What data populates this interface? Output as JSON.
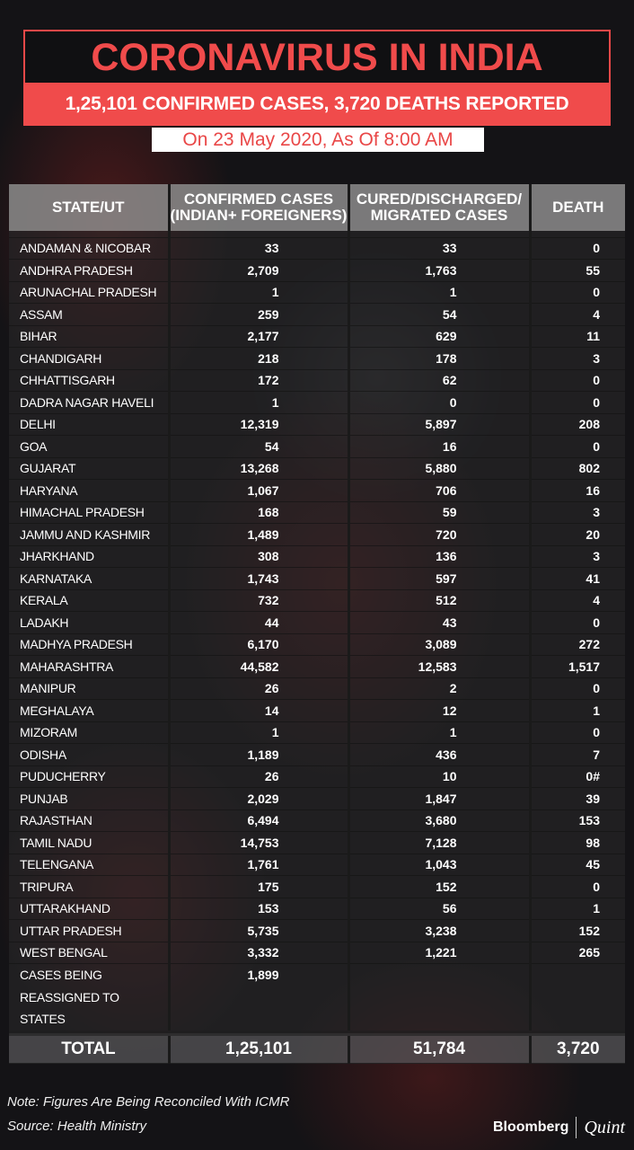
{
  "header": {
    "title": "CORONAVIRUS IN INDIA",
    "subtitle": "1,25,101 CONFIRMED CASES, 3,720 DEATHS REPORTED",
    "date": "On 23 May 2020, As Of 8:00 AM"
  },
  "table": {
    "columns": [
      "STATE/UT",
      "CONFIRMED CASES (INDIAN+ FOREIGNERS)",
      "CURED/DISCHARGED/ MIGRATED CASES",
      "DEATH"
    ],
    "rows": [
      [
        "ANDAMAN & NICOBAR",
        "33",
        "33",
        "0"
      ],
      [
        "ANDHRA PRADESH",
        "2,709",
        "1,763",
        "55"
      ],
      [
        "ARUNACHAL PRADESH",
        "1",
        "1",
        "0"
      ],
      [
        "ASSAM",
        "259",
        "54",
        "4"
      ],
      [
        "BIHAR",
        "2,177",
        "629",
        "11"
      ],
      [
        "CHANDIGARH",
        "218",
        "178",
        "3"
      ],
      [
        "CHHATTISGARH",
        "172",
        "62",
        "0"
      ],
      [
        "DADRA NAGAR HAVELI",
        "1",
        "0",
        "0"
      ],
      [
        "DELHI",
        "12,319",
        "5,897",
        "208"
      ],
      [
        "GOA",
        "54",
        "16",
        "0"
      ],
      [
        "GUJARAT",
        "13,268",
        "5,880",
        "802"
      ],
      [
        "HARYANA",
        "1,067",
        "706",
        "16"
      ],
      [
        "HIMACHAL PRADESH",
        "168",
        "59",
        "3"
      ],
      [
        "JAMMU AND KASHMIR",
        "1,489",
        "720",
        "20"
      ],
      [
        "JHARKHAND",
        "308",
        "136",
        "3"
      ],
      [
        "KARNATAKA",
        "1,743",
        "597",
        "41"
      ],
      [
        "KERALA",
        "732",
        "512",
        "4"
      ],
      [
        "LADAKH",
        "44",
        "43",
        "0"
      ],
      [
        "MADHYA PRADESH",
        "6,170",
        "3,089",
        "272"
      ],
      [
        "MAHARASHTRA",
        "44,582",
        "12,583",
        "1,517"
      ],
      [
        "MANIPUR",
        "26",
        "2",
        "0"
      ],
      [
        "MEGHALAYA",
        "14",
        "12",
        "1"
      ],
      [
        "MIZORAM",
        "1",
        "1",
        "0"
      ],
      [
        "ODISHA",
        "1,189",
        "436",
        "7"
      ],
      [
        "PUDUCHERRY",
        "26",
        "10",
        "0#"
      ],
      [
        "PUNJAB",
        "2,029",
        "1,847",
        "39"
      ],
      [
        "RAJASTHAN",
        "6,494",
        "3,680",
        "153"
      ],
      [
        "TAMIL NADU",
        "14,753",
        "7,128",
        "98"
      ],
      [
        "TELENGANA",
        "1,761",
        "1,043",
        "45"
      ],
      [
        "TRIPURA",
        "175",
        "152",
        "0"
      ],
      [
        "UTTARAKHAND",
        "153",
        "56",
        "1"
      ],
      [
        "UTTAR PRADESH",
        "5,735",
        "3,238",
        "152"
      ],
      [
        "WEST BENGAL",
        "3,332",
        "1,221",
        "265"
      ]
    ],
    "reassigned": {
      "label_lines": [
        "CASES BEING",
        "REASSIGNED TO",
        "STATES"
      ],
      "confirmed": "1,899"
    },
    "total": [
      "TOTAL",
      "1,25,101",
      "51,784",
      "3,720"
    ]
  },
  "footer": {
    "note": "Note: Figures Are Being Reconciled With ICMR",
    "source": "Source: Health Ministry",
    "logo_left": "Bloomberg",
    "logo_right": "Quint"
  },
  "colors": {
    "accent": "#f04b4b",
    "background": "#141316"
  }
}
